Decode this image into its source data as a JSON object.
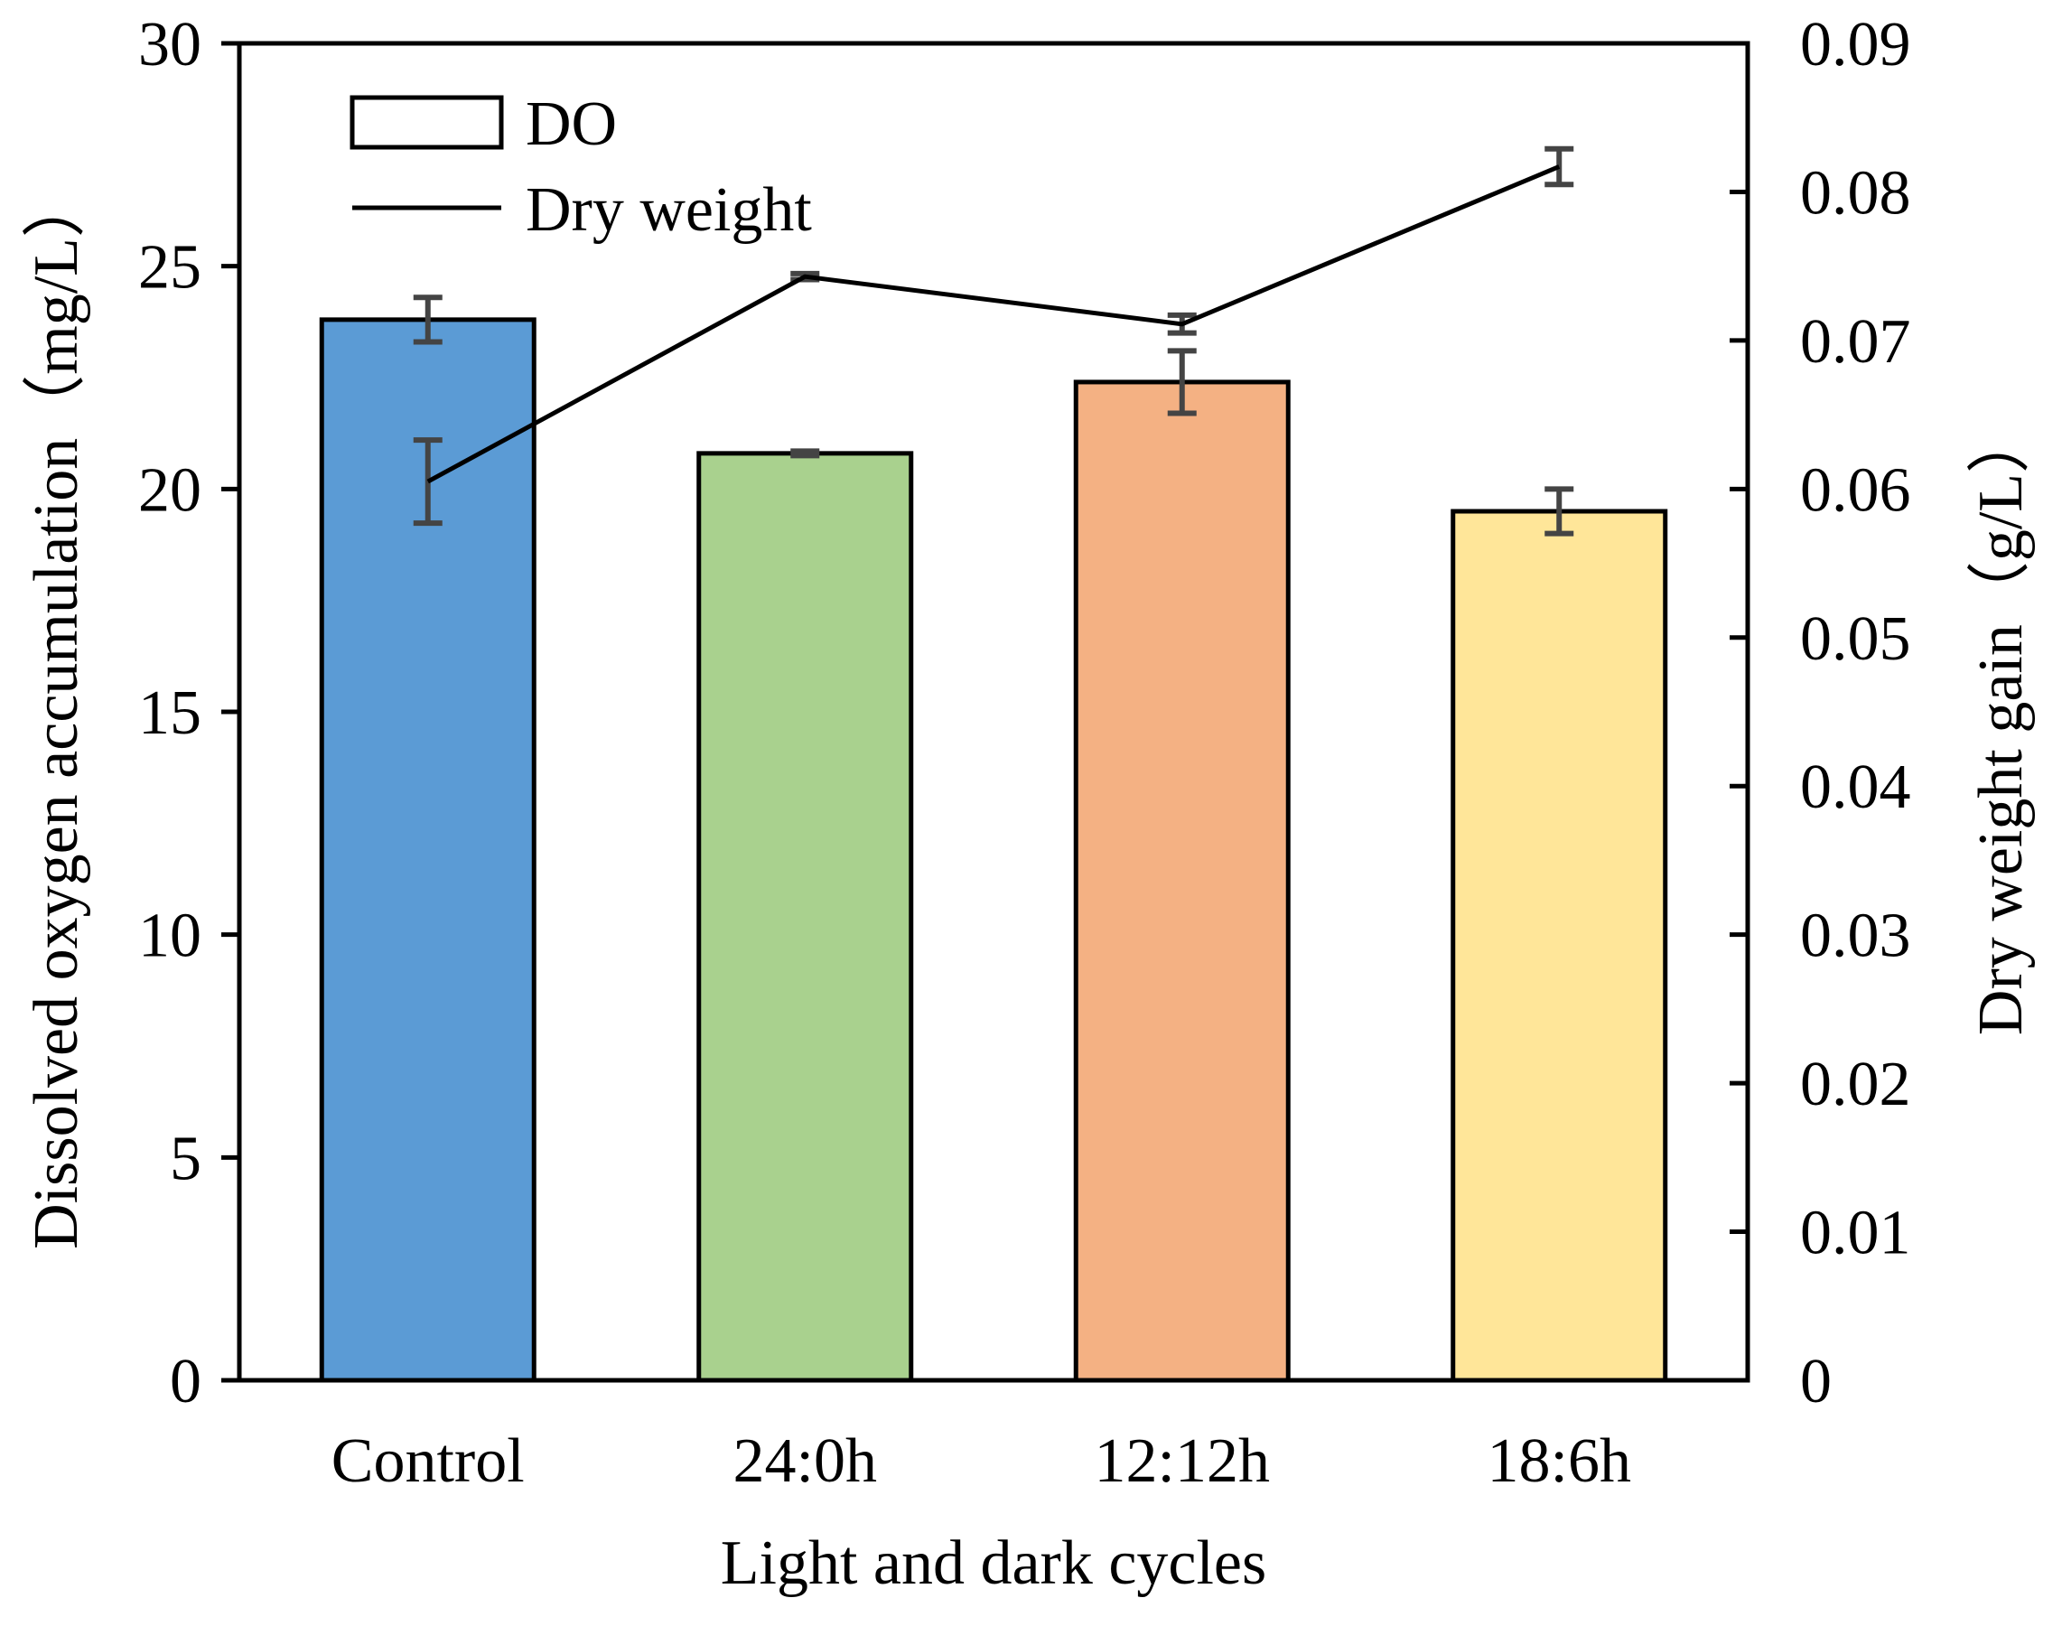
{
  "chart_data": {
    "type": "bar",
    "xlabel": "Light and dark cycles",
    "categories": [
      "Control",
      "24:0h",
      "12:12h",
      "18:6h"
    ],
    "y_left": {
      "label": "Dissolved oxygen accumulation（mg/L）",
      "ylim": [
        0,
        30
      ],
      "ticks": [
        0,
        5,
        10,
        15,
        20,
        25,
        30
      ],
      "tick_labels": [
        "0",
        "5",
        "10",
        "15",
        "20",
        "25",
        "30"
      ]
    },
    "y_right": {
      "label": "Dry weight gain（g/L）",
      "ylim": [
        0,
        0.09
      ],
      "ticks": [
        0,
        0.01,
        0.02,
        0.03,
        0.04,
        0.05,
        0.06,
        0.07,
        0.08,
        0.09
      ],
      "tick_labels": [
        "0",
        "0.01",
        "0.02",
        "0.03",
        "0.04",
        "0.05",
        "0.06",
        "0.07",
        "0.08",
        "0.09"
      ]
    },
    "series": [
      {
        "name": "DO",
        "type": "bar",
        "axis": "left",
        "values": [
          23.8,
          20.8,
          22.4,
          19.5
        ],
        "errors": [
          0.5,
          0.05,
          0.7,
          0.5
        ],
        "colors": [
          "#5B9BD5",
          "#A9D18E",
          "#F4B183",
          "#FFE699"
        ]
      },
      {
        "name": "Dry weight",
        "type": "line",
        "axis": "right",
        "values": [
          0.0605,
          0.0743,
          0.0711,
          0.0817
        ],
        "errors": [
          0.0028,
          0.0002,
          0.0006,
          0.0012
        ],
        "color": "#000000"
      }
    ],
    "legend": {
      "position": "top-left"
    },
    "grid": false
  }
}
